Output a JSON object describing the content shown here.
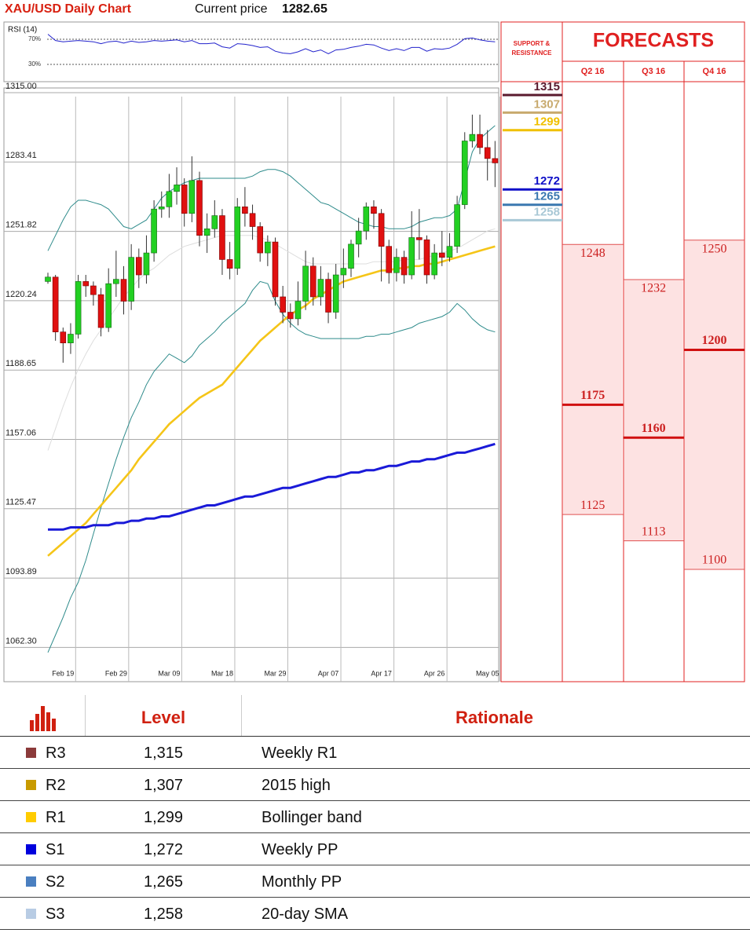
{
  "header": {
    "title": "XAU/USD Daily Chart",
    "price_label": "Current price",
    "price": "1282.65"
  },
  "chart_data": [
    {
      "type": "candlestick",
      "categories": [
        null,
        null,
        "Feb 19",
        null,
        null,
        null,
        null,
        null,
        null,
        "Feb 29",
        null,
        null,
        null,
        null,
        null,
        null,
        "Mar 09",
        null,
        null,
        null,
        null,
        null,
        null,
        "Mar 18",
        null,
        null,
        null,
        null,
        null,
        null,
        "Mar 29",
        null,
        null,
        null,
        null,
        null,
        null,
        "Apr 07",
        null,
        null,
        null,
        null,
        null,
        null,
        "Apr 17",
        null,
        null,
        null,
        null,
        null,
        null,
        "Apr 26",
        null,
        null,
        null,
        null,
        null,
        null,
        "May 05",
        null
      ],
      "open": [
        1229,
        1231,
        1206,
        1201,
        1205,
        1229,
        1227,
        1223,
        1208,
        1228,
        1230,
        1220,
        1240,
        1232,
        1242,
        1262,
        1263,
        1270,
        1273,
        1260,
        1275,
        1250,
        1253,
        1259,
        1239,
        1235,
        1263,
        1260,
        1254,
        1242,
        1247,
        1222,
        1215,
        1212,
        1220,
        1236,
        1222,
        1230,
        1215,
        1232,
        1235,
        1246,
        1252,
        1263,
        1260,
        1245,
        1233,
        1240,
        1232,
        1249,
        1248,
        1232,
        1242,
        1240,
        1245,
        1264,
        1293,
        1296,
        1290,
        1285
      ],
      "high": [
        1233,
        1232,
        1208,
        1210,
        1232,
        1232,
        1229,
        1226,
        1235,
        1243,
        1236,
        1246,
        1244,
        1250,
        1266,
        1270,
        1278,
        1281,
        1276,
        1286,
        1279,
        1260,
        1266,
        1262,
        1247,
        1267,
        1272,
        1264,
        1256,
        1250,
        1249,
        1227,
        1219,
        1229,
        1243,
        1240,
        1236,
        1233,
        1237,
        1244,
        1248,
        1258,
        1265,
        1266,
        1262,
        1248,
        1244,
        1243,
        1261,
        1262,
        1250,
        1246,
        1252,
        1251,
        1268,
        1297,
        1305,
        1305,
        1298,
        1293
      ],
      "low": [
        1228,
        1202,
        1192,
        1196,
        1203,
        1222,
        1218,
        1204,
        1206,
        1222,
        1214,
        1216,
        1226,
        1228,
        1238,
        1258,
        1258,
        1264,
        1254,
        1256,
        1245,
        1242,
        1249,
        1232,
        1230,
        1232,
        1254,
        1248,
        1238,
        1236,
        1218,
        1210,
        1208,
        1209,
        1216,
        1218,
        1218,
        1210,
        1212,
        1226,
        1231,
        1240,
        1248,
        1253,
        1229,
        1228,
        1229,
        1228,
        1230,
        1239,
        1228,
        1230,
        1236,
        1238,
        1242,
        1262,
        1290,
        1287,
        1275,
        1272
      ],
      "close": [
        1231,
        1206,
        1201,
        1205,
        1229,
        1227,
        1223,
        1208,
        1228,
        1230,
        1220,
        1240,
        1232,
        1242,
        1262,
        1263,
        1270,
        1273,
        1260,
        1275,
        1250,
        1253,
        1259,
        1239,
        1235,
        1263,
        1260,
        1254,
        1242,
        1247,
        1222,
        1215,
        1212,
        1220,
        1236,
        1222,
        1230,
        1215,
        1232,
        1235,
        1246,
        1252,
        1263,
        1260,
        1245,
        1233,
        1240,
        1232,
        1249,
        1248,
        1232,
        1242,
        1240,
        1245,
        1264,
        1293,
        1296,
        1290,
        1285,
        1283
      ],
      "up_color": "#22d022",
      "down_color": "#e01010",
      "lines": [
        {
          "color": "#dddddd",
          "values": [
            1152,
            1162,
            1172,
            1181,
            1189,
            1196,
            1202,
            1207,
            1212,
            1217,
            1222,
            1226,
            1230,
            1233,
            1235,
            1238,
            1241,
            1243,
            1245,
            1246,
            1247,
            1248,
            1249,
            1250,
            1250,
            1250,
            1250,
            1250,
            1249,
            1248,
            1246,
            1244,
            1242,
            1240,
            1238,
            1237,
            1237,
            1237,
            1237,
            1237,
            1237,
            1237,
            1237,
            1238,
            1238,
            1238,
            1238,
            1239,
            1239,
            1239,
            1240,
            1241,
            1242,
            1243,
            1244,
            1246,
            1248,
            1250,
            1252,
            1253
          ]
        },
        {
          "color": "#2e8b8b",
          "values": [
            1243,
            1250,
            1257,
            1263,
            1266,
            1266,
            1265,
            1264,
            1262,
            1258,
            1254,
            1253,
            1255,
            1257,
            1262,
            1267,
            1270,
            1272,
            1274,
            1275,
            1276,
            1276,
            1276,
            1276,
            1276,
            1276,
            1276,
            1277,
            1279,
            1280,
            1280,
            1279,
            1277,
            1274,
            1271,
            1268,
            1265,
            1264,
            1262,
            1260,
            1258,
            1256,
            1255,
            1254,
            1254,
            1253,
            1253,
            1253,
            1254,
            1256,
            1257,
            1258,
            1258,
            1259,
            1262,
            1275,
            1288,
            1294,
            1297,
            1300
          ]
        },
        {
          "color": "#2e8b8b",
          "values": [
            1060,
            1068,
            1076,
            1085,
            1092,
            1102,
            1114,
            1126,
            1137,
            1148,
            1158,
            1167,
            1174,
            1182,
            1188,
            1192,
            1196,
            1194,
            1192,
            1195,
            1200,
            1203,
            1206,
            1210,
            1213,
            1216,
            1219,
            1225,
            1229,
            1228,
            1220,
            1214,
            1210,
            1207,
            1205,
            1204,
            1203,
            1203,
            1203,
            1203,
            1203,
            1203,
            1204,
            1204,
            1205,
            1205,
            1206,
            1207,
            1208,
            1210,
            1211,
            1212,
            1213,
            1215,
            1219,
            1216,
            1212,
            1209,
            1207,
            1206
          ]
        },
        {
          "color": "#f5c518",
          "values": [
            1104,
            1107,
            1110,
            1113,
            1116,
            1119,
            1123,
            1127,
            1131,
            1135,
            1139,
            1143,
            1148,
            1152,
            1156,
            1160,
            1164,
            1167,
            1170,
            1173,
            1176,
            1178,
            1180,
            1182,
            1186,
            1190,
            1194,
            1198,
            1202,
            1205,
            1208,
            1211,
            1214,
            1216,
            1218,
            1221,
            1223,
            1225,
            1227,
            1229,
            1230,
            1231,
            1232,
            1233,
            1234,
            1234,
            1235,
            1235,
            1236,
            1236,
            1237,
            1237,
            1238,
            1239,
            1240,
            1241,
            1242,
            1243,
            1244,
            1245
          ]
        },
        {
          "color": "#1a1ad8",
          "values": [
            1116,
            1116,
            1116,
            1117,
            1117,
            1117,
            1118,
            1118,
            1118,
            1119,
            1119,
            1120,
            1120,
            1121,
            1121,
            1122,
            1122,
            1123,
            1124,
            1125,
            1126,
            1127,
            1127,
            1128,
            1129,
            1130,
            1131,
            1131,
            1132,
            1133,
            1134,
            1135,
            1135,
            1136,
            1137,
            1138,
            1139,
            1140,
            1140,
            1141,
            1142,
            1142,
            1143,
            1143,
            1144,
            1145,
            1145,
            1146,
            1147,
            1147,
            1148,
            1148,
            1149,
            1150,
            1151,
            1151,
            1152,
            1153,
            1154,
            1155
          ]
        }
      ],
      "ylim": [
        1046.7,
        1315
      ],
      "yticks": [
        {
          "value": 1315,
          "label": "1315.00"
        },
        1283.41,
        1251.82,
        1220.24,
        1188.65,
        1157.06,
        1125.47,
        1093.89,
        {
          "value": 1062.3,
          "label": "1062.30"
        }
      ],
      "grid": true
    },
    {
      "type": "line",
      "title": "RSI (14)",
      "color": "#2222cc",
      "values": [
        78,
        68,
        66,
        67,
        68,
        67,
        66,
        63,
        66,
        67,
        64,
        67,
        65,
        66,
        68,
        67,
        68,
        69,
        66,
        68,
        63,
        63,
        64,
        58,
        56,
        63,
        62,
        60,
        57,
        58,
        51,
        48,
        47,
        50,
        55,
        50,
        53,
        47,
        53,
        54,
        57,
        59,
        62,
        61,
        56,
        52,
        55,
        52,
        57,
        57,
        51,
        55,
        54,
        56,
        62,
        71,
        72,
        69,
        67,
        66
      ],
      "ylim": [
        7.5,
        87.5
      ],
      "yticks": [
        {
          "value": 70,
          "label": "70%"
        },
        {
          "value": 30,
          "label": "30%"
        }
      ]
    }
  ],
  "support_resistance": {
    "title": "SUPPORT & RESISTANCE",
    "levels": [
      {
        "value": 1315,
        "color": "#5a1a2e"
      },
      {
        "value": 1307,
        "color": "#c8aa6e"
      },
      {
        "value": 1299,
        "color": "#f0c000"
      },
      {
        "value": 1272,
        "color": "#1010c8"
      },
      {
        "value": 1265,
        "color": "#3a78b0"
      },
      {
        "value": 1258,
        "color": "#a9c8d6"
      }
    ]
  },
  "forecasts": {
    "title": "FORECASTS",
    "columns": [
      {
        "name": "Q2 16",
        "high": 1248,
        "base": 1175,
        "low": 1125
      },
      {
        "name": "Q3 16",
        "high": 1232,
        "base": 1160,
        "low": 1113
      },
      {
        "name": "Q4 16",
        "high": 1250,
        "base": 1200,
        "low": 1100
      }
    ]
  },
  "table": {
    "headers": [
      "Level",
      "Rationale"
    ],
    "rows": [
      {
        "code": "R3",
        "color": "#8b3a3a",
        "level": "1,315",
        "rationale": "Weekly R1"
      },
      {
        "code": "R2",
        "color": "#c89a00",
        "level": "1,307",
        "rationale": "2015 high"
      },
      {
        "code": "R1",
        "color": "#ffcc00",
        "level": "1,299",
        "rationale": "Bollinger band"
      },
      {
        "code": "S1",
        "color": "#0000dd",
        "level": "1,272",
        "rationale": "Weekly PP"
      },
      {
        "code": "S2",
        "color": "#4a7fc0",
        "level": "1,265",
        "rationale": "Monthly PP"
      },
      {
        "code": "S3",
        "color": "#b8cce4",
        "level": "1,258",
        "rationale": "20-day SMA"
      }
    ]
  }
}
